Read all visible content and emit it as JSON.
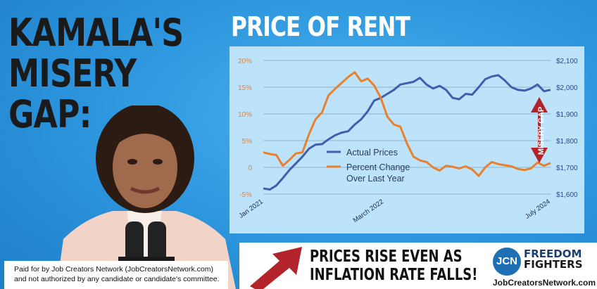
{
  "headline": {
    "line1": "KAMALA'S",
    "line2": "MISERY",
    "line3": "GAP:"
  },
  "chart_data": {
    "type": "line",
    "title": "PRICE OF RENT",
    "x_labels": [
      "Jan 2021",
      "March 2022",
      "July 2024"
    ],
    "y_left_ticks": [
      "20%",
      "15%",
      "10%",
      "5%",
      "0",
      "-5%"
    ],
    "y_right_ticks": [
      "$2,100",
      "$2,000",
      "$1,900",
      "$1,800",
      "$1,700",
      "$1,600"
    ],
    "ylim_left": [
      -5,
      20
    ],
    "ylim_right": [
      1600,
      2100
    ],
    "grid": true,
    "series": [
      {
        "name": "Actual Prices",
        "axis": "right",
        "color": "#3f5fae",
        "values": [
          1621,
          1617,
          1632,
          1660,
          1690,
          1715,
          1740,
          1770,
          1785,
          1787,
          1805,
          1820,
          1830,
          1835,
          1860,
          1880,
          1910,
          1950,
          1960,
          1975,
          1990,
          2010,
          2015,
          2020,
          2035,
          2010,
          1995,
          2005,
          1990,
          1960,
          1955,
          1975,
          1972,
          2000,
          2030,
          2040,
          2045,
          2025,
          2000,
          1990,
          1987,
          1995,
          2010,
          1985,
          1990
        ]
      },
      {
        "name": "Percent Change Over Last Year",
        "axis": "left",
        "color": "#e8812f",
        "values": [
          2.8,
          2.5,
          2.3,
          0.3,
          1.4,
          2.6,
          2.8,
          6.2,
          9.0,
          10.3,
          13.5,
          14.7,
          15.8,
          16.9,
          17.8,
          16.1,
          16.6,
          15.3,
          13.0,
          9.5,
          8.0,
          7.6,
          4.5,
          2.0,
          1.3,
          1.0,
          0.0,
          -0.6,
          0.3,
          0.1,
          -0.2,
          0.2,
          -0.4,
          -1.6,
          0.0,
          1.0,
          0.6,
          0.4,
          0.2,
          -0.3,
          -0.5,
          -0.2,
          0.9,
          0.3,
          0.8
        ]
      }
    ],
    "annotation": "MISERY GAP"
  },
  "legend": {
    "actual": "Actual Prices",
    "percent_line1": "Percent Change",
    "percent_line2": "Over Last Year"
  },
  "disclaimer": {
    "line1": "Paid for by Job Creators Network (JobCreatorsNetwork.com)",
    "line2": "and not authorized by any candidate or candidate's committee."
  },
  "tagline": {
    "line1": "PRICES RISE EVEN AS",
    "line2": "INFLATION RATE FALLS!"
  },
  "logo": {
    "mark": "JCN",
    "word1": "FREEDOM",
    "word2": "FIGHTERS",
    "url": "JobCreatorsNetwork.com"
  },
  "colors": {
    "background": "#2f9be0",
    "panel": "#bde3fa",
    "actual": "#3f5fae",
    "percent": "#e8812f",
    "gap": "#b3242a",
    "arrow": "#b3242a"
  }
}
